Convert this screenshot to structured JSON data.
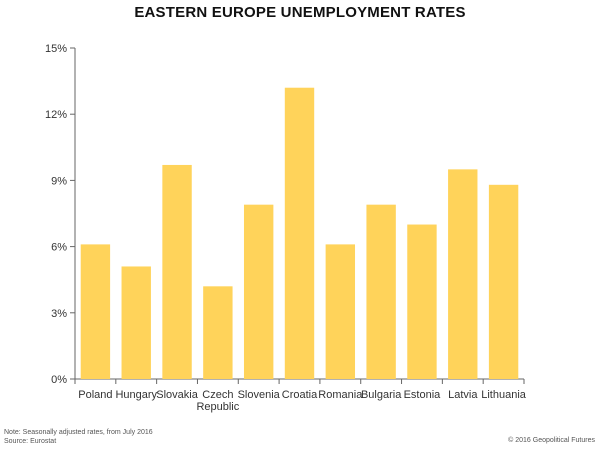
{
  "colors": {
    "bar": "#FFD35A",
    "axis": "#666666",
    "text": "#333333",
    "title": "#111111"
  },
  "footer": {
    "note": "Note: Seasonally adjusted rates, from July 2016",
    "source": "Source: Eurostat",
    "copyright": "© 2016 Geopolitical Futures"
  },
  "chart_data": {
    "type": "bar",
    "title": "EASTERN EUROPE UNEMPLOYMENT RATES",
    "xlabel": "",
    "ylabel": "",
    "ylim": [
      0,
      15
    ],
    "yticks": [
      0,
      3,
      6,
      9,
      12,
      15
    ],
    "ytick_labels": [
      "0%",
      "3%",
      "6%",
      "9%",
      "12%",
      "15%"
    ],
    "grid": false,
    "categories": [
      "Poland",
      "Hungary",
      "Slovakia",
      "Czech Republic",
      "Slovenia",
      "Croatia",
      "Romania",
      "Bulgaria",
      "Estonia",
      "Latvia",
      "Lithuania"
    ],
    "category_lines": [
      [
        "Poland"
      ],
      [
        "Hungary"
      ],
      [
        "Slovakia"
      ],
      [
        "Czech",
        "Republic"
      ],
      [
        "Slovenia"
      ],
      [
        "Croatia"
      ],
      [
        "Romania"
      ],
      [
        "Bulgaria"
      ],
      [
        "Estonia"
      ],
      [
        "Latvia"
      ],
      [
        "Lithuania"
      ]
    ],
    "values": [
      6.1,
      5.1,
      9.7,
      4.2,
      7.9,
      13.2,
      6.1,
      7.9,
      7.0,
      9.5,
      8.8
    ]
  }
}
